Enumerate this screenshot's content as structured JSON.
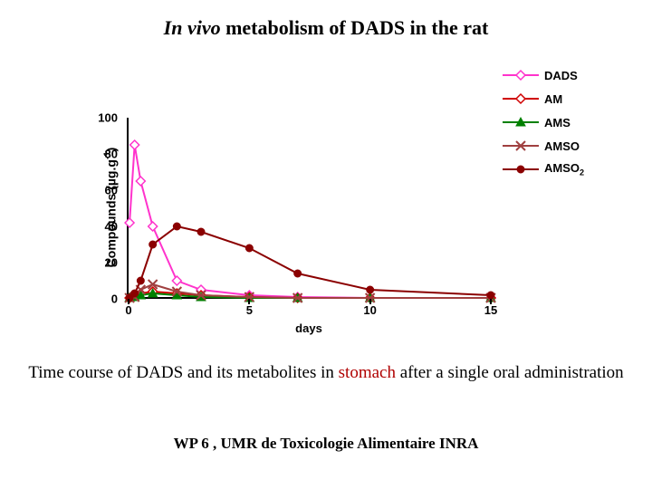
{
  "title_prefix_italic": "In vivo",
  "title_rest": " metabolism of DADS in the rat",
  "chart": {
    "type": "line",
    "x_label": "days",
    "y_label_pre": "Compounds (µg.g",
    "y_label_sup": "-1",
    "y_label_post": ")",
    "xlim": [
      0,
      15
    ],
    "ylim": [
      0,
      100
    ],
    "y_ticks": [
      0,
      20,
      40,
      60,
      80,
      100
    ],
    "x_ticks": [
      0,
      5,
      10,
      15
    ],
    "axis_color": "#000000",
    "plot_bg": "#ffffff",
    "line_width": 2,
    "marker_size": 5,
    "series": [
      {
        "name": "DADS",
        "color": "#ff33cc",
        "marker": "diamond-open",
        "x": [
          0.04,
          0.25,
          0.5,
          1,
          2,
          3,
          5,
          7,
          10,
          15
        ],
        "y": [
          42,
          85,
          65,
          40,
          10,
          5,
          2,
          1,
          0.5,
          0.5
        ]
      },
      {
        "name": "AM",
        "color": "#d00000",
        "marker": "diamond-open",
        "x": [
          0.04,
          0.25,
          0.5,
          1,
          2,
          3,
          5,
          7,
          10,
          15
        ],
        "y": [
          0.5,
          2,
          3,
          4,
          3,
          2,
          1,
          0.5,
          0.5,
          0.5
        ]
      },
      {
        "name": "AMS",
        "color": "#008000",
        "marker": "triangle",
        "x": [
          0.04,
          0.25,
          0.5,
          1,
          2,
          3,
          5,
          7,
          10,
          15
        ],
        "y": [
          0.5,
          1,
          2,
          3,
          2,
          1,
          0.5,
          0.5,
          0.5,
          0.5
        ]
      },
      {
        "name": "AMSO",
        "color": "#a04040",
        "marker": "x",
        "x": [
          0.04,
          0.25,
          0.5,
          1,
          2,
          3,
          5,
          7,
          10,
          15
        ],
        "y": [
          0.5,
          1,
          5,
          8,
          4,
          2,
          1,
          0.5,
          0.5,
          0.5
        ]
      },
      {
        "name": "AMSO",
        "name_sub": "2",
        "color": "#8b0000",
        "marker": "circle",
        "x": [
          0.04,
          0.25,
          0.5,
          1,
          2,
          3,
          5,
          7,
          10,
          15
        ],
        "y": [
          0.5,
          3,
          10,
          30,
          40,
          37,
          28,
          14,
          5,
          2
        ]
      }
    ]
  },
  "caption_pre": "Time course of DADS and its metabolites in ",
  "caption_organ": "stomach",
  "caption_post": " after a single oral administration",
  "footer": "WP 6 , UMR de Toxicologie Alimentaire INRA"
}
